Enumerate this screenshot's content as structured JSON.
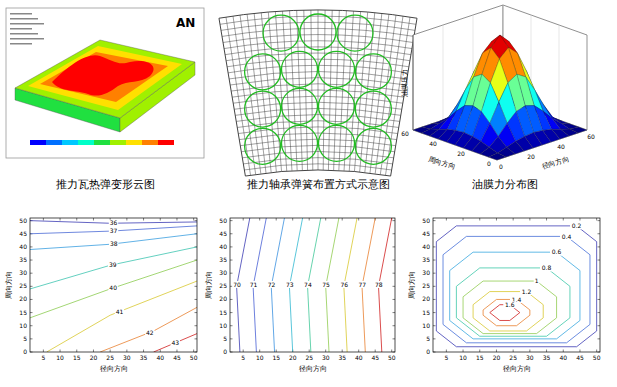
{
  "chart_data": [
    {
      "type": "fem_contour",
      "title": "推力瓦热弹变形云图",
      "logo": "AN",
      "colors": [
        "#0000ff",
        "#0070ff",
        "#00c8ff",
        "#00ffc8",
        "#20e040",
        "#a0f000",
        "#ffe000",
        "#ff8000",
        "#ff0000"
      ]
    },
    {
      "type": "diagram",
      "title": "推力轴承弹簧布置方式示意图",
      "springs": {
        "rows": [
          3,
          4,
          4,
          4
        ]
      }
    },
    {
      "type": "surface",
      "title": "油膜力分布图",
      "x_label": "径向方向",
      "y_label": "周向方向",
      "z_label": "油膜压力",
      "x": [
        0,
        6,
        12,
        18,
        24,
        30,
        36,
        42,
        48,
        54,
        60
      ],
      "y": [
        0,
        6,
        12,
        18,
        24,
        30,
        36,
        42,
        48,
        54,
        60
      ],
      "z": [
        [
          0,
          0,
          0,
          0,
          0,
          0,
          0,
          0,
          0,
          0,
          0
        ],
        [
          0,
          0.01,
          0.04,
          0.07,
          0.09,
          0.1,
          0.09,
          0.07,
          0.04,
          0.01,
          0
        ],
        [
          0,
          0.04,
          0.12,
          0.23,
          0.32,
          0.35,
          0.32,
          0.23,
          0.12,
          0.04,
          0
        ],
        [
          0,
          0.07,
          0.23,
          0.42,
          0.59,
          0.65,
          0.59,
          0.42,
          0.23,
          0.07,
          0
        ],
        [
          0,
          0.09,
          0.32,
          0.59,
          0.81,
          0.9,
          0.81,
          0.59,
          0.32,
          0.09,
          0
        ],
        [
          0,
          0.1,
          0.35,
          0.65,
          0.9,
          1,
          0.9,
          0.65,
          0.35,
          0.1,
          0
        ],
        [
          0,
          0.09,
          0.32,
          0.59,
          0.81,
          0.9,
          0.81,
          0.59,
          0.32,
          0.09,
          0
        ],
        [
          0,
          0.07,
          0.23,
          0.42,
          0.59,
          0.65,
          0.59,
          0.42,
          0.23,
          0.07,
          0
        ],
        [
          0,
          0.04,
          0.12,
          0.23,
          0.32,
          0.35,
          0.32,
          0.23,
          0.12,
          0.04,
          0
        ],
        [
          0,
          0.01,
          0.04,
          0.07,
          0.09,
          0.1,
          0.09,
          0.07,
          0.04,
          0.01,
          0
        ],
        [
          0,
          0,
          0,
          0,
          0,
          0,
          0,
          0,
          0,
          0,
          0
        ]
      ],
      "xlim": [
        0,
        60
      ],
      "ylim": [
        0,
        60
      ],
      "zlim": [
        0,
        1
      ],
      "xticks": [
        0,
        20,
        40,
        60
      ],
      "yticks": [
        0,
        20,
        40,
        60
      ],
      "grid": true
    },
    {
      "type": "contour",
      "x_label": "径向方向",
      "y_label": "周向方向",
      "xlim": [
        1,
        51
      ],
      "ylim": [
        0,
        51
      ],
      "xticks": [
        5,
        10,
        15,
        20,
        25,
        30,
        35,
        40,
        45,
        50
      ],
      "yticks": [
        0,
        5,
        10,
        15,
        20,
        25,
        30,
        35,
        40,
        45,
        50
      ],
      "series": [
        {
          "level": 36,
          "color": "#3c3cb4",
          "x": [
            1,
            25,
            51
          ],
          "y": [
            50,
            49,
            49.5
          ]
        },
        {
          "level": 37,
          "color": "#4a6ad6",
          "x": [
            1,
            25,
            51
          ],
          "y": [
            45,
            46,
            48
          ]
        },
        {
          "level": 38,
          "color": "#3a9ee0",
          "x": [
            1,
            25,
            51
          ],
          "y": [
            39,
            41,
            45
          ]
        },
        {
          "level": 39,
          "color": "#3cc4b0",
          "x": [
            1,
            25,
            51
          ],
          "y": [
            24,
            33,
            40
          ]
        },
        {
          "level": 40,
          "color": "#8ccc50",
          "x": [
            1,
            25,
            51
          ],
          "y": [
            13,
            24,
            35
          ]
        },
        {
          "level": 41,
          "color": "#d8c830",
          "x": [
            6,
            25,
            51
          ],
          "y": [
            0,
            14,
            27
          ]
        },
        {
          "level": 42,
          "color": "#e88030",
          "x": [
            22,
            38,
            51
          ],
          "y": [
            0,
            8,
            17
          ]
        },
        {
          "level": 43,
          "color": "#d02020",
          "x": [
            38,
            51
          ],
          "y": [
            0,
            7
          ]
        }
      ]
    },
    {
      "type": "contour",
      "x_label": "径向方向",
      "y_label": "周向方向",
      "xlim": [
        1,
        51
      ],
      "ylim": [
        0,
        51
      ],
      "xticks": [
        5,
        10,
        15,
        20,
        25,
        30,
        35,
        40,
        45,
        50
      ],
      "yticks": [
        0,
        5,
        10,
        15,
        20,
        25,
        30,
        35,
        40,
        45,
        50
      ],
      "series": [
        {
          "level": 70,
          "color": "#3c3cb4",
          "x": [
            4,
            3,
            7
          ],
          "y": [
            0,
            25,
            51
          ]
        },
        {
          "level": 71,
          "color": "#4860d4",
          "x": [
            9,
            8,
            12
          ],
          "y": [
            0,
            25,
            51
          ]
        },
        {
          "level": 72,
          "color": "#3a90e0",
          "x": [
            14.5,
            13.5,
            17.5
          ],
          "y": [
            0,
            25,
            51
          ]
        },
        {
          "level": 73,
          "color": "#30b8d0",
          "x": [
            20,
            19,
            23
          ],
          "y": [
            0,
            25,
            51
          ]
        },
        {
          "level": 74,
          "color": "#40c898",
          "x": [
            25.5,
            24.5,
            28.5
          ],
          "y": [
            0,
            25,
            51
          ]
        },
        {
          "level": 75,
          "color": "#90cc50",
          "x": [
            31,
            30,
            34
          ],
          "y": [
            0,
            25,
            51
          ]
        },
        {
          "level": 76,
          "color": "#d8c830",
          "x": [
            36.5,
            35.5,
            39.5
          ],
          "y": [
            0,
            25,
            51
          ]
        },
        {
          "level": 77,
          "color": "#e88030",
          "x": [
            42,
            41,
            45
          ],
          "y": [
            0,
            25,
            51
          ]
        },
        {
          "level": 78,
          "color": "#d02020",
          "x": [
            47,
            46,
            50
          ],
          "y": [
            0,
            25,
            51
          ]
        }
      ]
    },
    {
      "type": "contour",
      "x_label": "径向方向",
      "y_label": "周向方向",
      "xlim": [
        1,
        51
      ],
      "ylim": [
        0,
        51
      ],
      "xticks": [
        5,
        10,
        15,
        20,
        25,
        30,
        35,
        40,
        45,
        50
      ],
      "yticks": [
        0,
        5,
        10,
        15,
        20,
        25,
        30,
        35,
        40,
        45,
        50
      ],
      "series": [
        {
          "level": 0.2,
          "color": "#3c3cb4",
          "x": [
            8,
            44,
            50,
            50,
            44,
            8,
            2,
            2,
            8
          ],
          "y": [
            2,
            2,
            8,
            42,
            48,
            48,
            42,
            8,
            2
          ]
        },
        {
          "level": 0.4,
          "color": "#4670d8",
          "x": [
            11,
            41,
            48,
            48,
            41,
            11,
            4,
            4,
            11
          ],
          "y": [
            3.5,
            3.5,
            10.5,
            37,
            44,
            44,
            37,
            10.5,
            3.5
          ]
        },
        {
          "level": 0.6,
          "color": "#3aa8e0",
          "x": [
            13,
            38,
            45,
            45,
            38,
            13,
            6,
            6,
            13
          ],
          "y": [
            5,
            5,
            12,
            31,
            38,
            38,
            31,
            12,
            5
          ]
        },
        {
          "level": 0.8,
          "color": "#3cc8a8",
          "x": [
            15,
            35,
            42,
            42,
            35,
            15,
            8,
            8,
            15
          ],
          "y": [
            6,
            6,
            13,
            25,
            32,
            32,
            25,
            13,
            6
          ]
        },
        {
          "level": 1,
          "color": "#90cc50",
          "x": [
            16,
            32,
            38,
            38,
            32,
            16,
            10,
            10,
            16
          ],
          "y": [
            7,
            7,
            13,
            21,
            27,
            27,
            21,
            13,
            7
          ]
        },
        {
          "level": 1.2,
          "color": "#d8c830",
          "x": [
            18,
            29,
            34,
            34,
            29,
            18,
            13,
            13,
            18
          ],
          "y": [
            8,
            8,
            13,
            18,
            23,
            23,
            18,
            13,
            8
          ]
        },
        {
          "level": 1.4,
          "color": "#e88030",
          "x": [
            20,
            26,
            30,
            30,
            26,
            20,
            16,
            16,
            20
          ],
          "y": [
            10,
            10,
            14,
            16,
            20,
            20,
            16,
            14,
            10
          ]
        },
        {
          "level": 1.6,
          "color": "#d02020",
          "x": [
            21,
            24,
            27,
            24,
            21,
            18,
            21
          ],
          "y": [
            12,
            12,
            15,
            18,
            18,
            15,
            12
          ]
        }
      ]
    }
  ]
}
